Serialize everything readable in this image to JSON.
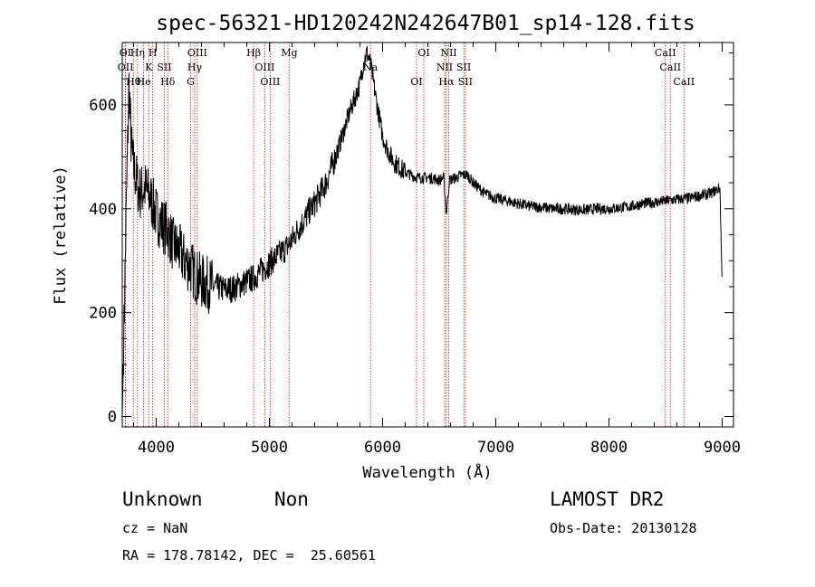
{
  "chart_data": {
    "type": "line",
    "title": "spec-56321-HD120242N242647B01_sp14-128.fits",
    "xlabel": "Wavelength (Å)",
    "ylabel": "Flux (relative)",
    "xlim": [
      3700,
      9100
    ],
    "ylim": [
      -20,
      720
    ],
    "x_ticks": [
      4000,
      5000,
      6000,
      7000,
      8000,
      9000
    ],
    "y_ticks": [
      0,
      200,
      400,
      600
    ],
    "grid": false,
    "series": [
      {
        "x": [
          3700,
          3740,
          3760,
          3780,
          3800,
          3850,
          3900,
          3950,
          4000,
          4050,
          4100,
          4150,
          4200,
          4250,
          4300,
          4350,
          4400,
          4450,
          4500,
          4550,
          4600,
          4650,
          4700,
          4750,
          4800,
          4850,
          4900,
          4950,
          5000,
          5050,
          5100,
          5150,
          5200,
          5250,
          5300,
          5350,
          5400,
          5450,
          5500,
          5550,
          5600,
          5650,
          5700,
          5750,
          5800,
          5830,
          5860,
          5880,
          5900,
          5950,
          6000,
          6050,
          6100,
          6150,
          6200,
          6250,
          6300,
          6350,
          6400,
          6450,
          6500,
          6540,
          6563,
          6590,
          6650,
          6700,
          6750,
          6800,
          6850,
          6900,
          6950,
          7000,
          7100,
          7200,
          7300,
          7400,
          7500,
          7600,
          7700,
          7800,
          7900,
          8000,
          8100,
          8200,
          8300,
          8400,
          8500,
          8600,
          8700,
          8800,
          8900,
          8980,
          9000
        ],
        "y": [
          0,
          450,
          640,
          520,
          480,
          430,
          440,
          420,
          390,
          370,
          360,
          330,
          320,
          300,
          290,
          270,
          260,
          255,
          250,
          248,
          245,
          245,
          248,
          255,
          260,
          265,
          275,
          285,
          295,
          305,
          315,
          325,
          340,
          360,
          375,
          395,
          410,
          430,
          450,
          480,
          510,
          545,
          580,
          610,
          640,
          680,
          700,
          690,
          670,
          600,
          540,
          510,
          490,
          480,
          470,
          465,
          460,
          460,
          460,
          458,
          455,
          460,
          390,
          455,
          460,
          465,
          465,
          450,
          440,
          430,
          425,
          420,
          415,
          410,
          405,
          403,
          400,
          400,
          398,
          398,
          400,
          400,
          402,
          405,
          410,
          412,
          415,
          418,
          420,
          425,
          430,
          440,
          250
        ]
      }
    ],
    "lines": [
      {
        "label": "OI",
        "x": 3727
      },
      {
        "label": "OII",
        "x": 3729
      },
      {
        "label": "Hθ",
        "x": 3798
      },
      {
        "label": "Hη",
        "x": 3835
      },
      {
        "label": "K",
        "x": 3934
      },
      {
        "label": "He",
        "x": 3889
      },
      {
        "label": "H",
        "x": 3969
      },
      {
        "label": "SII",
        "x": 4072
      },
      {
        "label": "Hδ",
        "x": 4102
      },
      {
        "label": "OIII",
        "x": 4363
      },
      {
        "label": "Hγ",
        "x": 4340
      },
      {
        "label": "G",
        "x": 4304
      },
      {
        "label": "Hβ",
        "x": 4861
      },
      {
        "label": "OIII",
        "x": 4959
      },
      {
        "label": "OIII",
        "x": 5007
      },
      {
        "label": "Mg",
        "x": 5175
      },
      {
        "label": "Na",
        "x": 5893
      },
      {
        "label": "OI",
        "x": 6300
      },
      {
        "label": "OI",
        "x": 6364
      },
      {
        "label": "NII",
        "x": 6548
      },
      {
        "label": "Hα",
        "x": 6563
      },
      {
        "label": "NII",
        "x": 6584
      },
      {
        "label": "SII",
        "x": 6717
      },
      {
        "label": "SII",
        "x": 6731
      },
      {
        "label": "CaII",
        "x": 8498
      },
      {
        "label": "CaII",
        "x": 8542
      },
      {
        "label": "CaII",
        "x": 8662
      }
    ]
  },
  "info": {
    "classification": "Unknown",
    "subclass": "Non",
    "survey": "LAMOST DR2",
    "redshift": "cz = NaN",
    "obs_date": "Obs-Date: 20130128",
    "coords": "RA = 178.78142, DEC =  25.60561"
  }
}
